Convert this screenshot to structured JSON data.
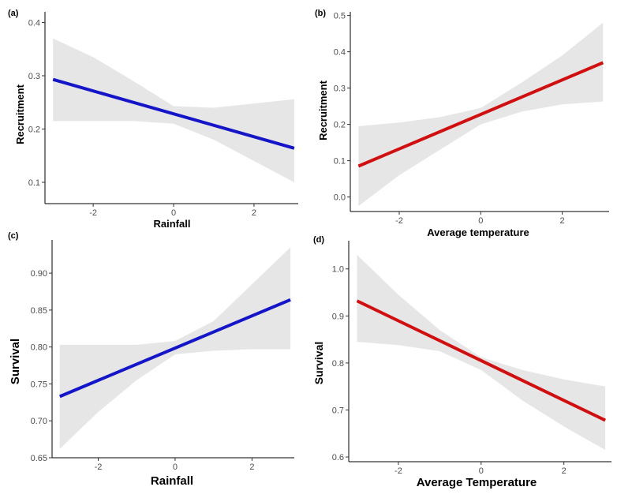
{
  "chart_data": [
    {
      "panel": "(a)",
      "type": "line",
      "xlabel": "Rainfall",
      "ylabel": "Recruitment",
      "xlim": [
        -3.2,
        3.1
      ],
      "ylim": [
        0.06,
        0.42
      ],
      "xticks": [
        -2,
        0,
        2
      ],
      "yticks": [
        0.1,
        0.2,
        0.3,
        0.4
      ],
      "ytick_labels": [
        "0.1",
        "0.2",
        "0.3",
        "0.4"
      ],
      "line_color": "#1414c8",
      "band_color": "#e6e6e6",
      "x": [
        -3,
        3
      ],
      "y": [
        0.293,
        0.164
      ],
      "ci_x": [
        -3,
        -2,
        -1,
        0,
        1,
        2,
        3
      ],
      "ci_lower": [
        0.215,
        0.215,
        0.215,
        0.21,
        0.18,
        0.14,
        0.1
      ],
      "ci_upper": [
        0.37,
        0.335,
        0.29,
        0.243,
        0.24,
        0.248,
        0.256
      ]
    },
    {
      "panel": "(b)",
      "type": "line",
      "xlabel": "Average temperature",
      "ylabel": "Recruitment",
      "xlim": [
        -3.2,
        3.15
      ],
      "ylim": [
        -0.04,
        0.51
      ],
      "xticks": [
        -2,
        0,
        2
      ],
      "yticks": [
        0.0,
        0.1,
        0.2,
        0.3,
        0.4,
        0.5
      ],
      "ytick_labels": [
        "0.0",
        "0.1",
        "0.2",
        "0.3",
        "0.4",
        "0.5"
      ],
      "line_color": "#d01010",
      "band_color": "#e6e6e6",
      "x": [
        -3,
        3
      ],
      "y": [
        0.085,
        0.37
      ],
      "ci_x": [
        -3,
        -2,
        -1,
        0,
        1,
        2,
        3
      ],
      "ci_lower": [
        -0.025,
        0.06,
        0.13,
        0.2,
        0.235,
        0.255,
        0.263
      ],
      "ci_upper": [
        0.195,
        0.205,
        0.22,
        0.245,
        0.315,
        0.39,
        0.48
      ]
    },
    {
      "panel": "(c)",
      "type": "line",
      "xlabel": "Rainfall",
      "ylabel": "Survival",
      "xlim": [
        -3.2,
        3.1
      ],
      "ylim": [
        0.65,
        0.945
      ],
      "xticks": [
        -2,
        0,
        2
      ],
      "yticks": [
        0.65,
        0.7,
        0.75,
        0.8,
        0.85,
        0.9
      ],
      "ytick_labels": [
        "0.65",
        "0.70",
        "0.75",
        "0.80",
        "0.85",
        "0.90"
      ],
      "line_color": "#1414c8",
      "band_color": "#e6e6e6",
      "x": [
        -3,
        3
      ],
      "y": [
        0.733,
        0.864
      ],
      "ci_x": [
        -3,
        -2,
        -1,
        0,
        1,
        2,
        3
      ],
      "ci_lower": [
        0.662,
        0.712,
        0.755,
        0.79,
        0.795,
        0.797,
        0.797
      ],
      "ci_upper": [
        0.803,
        0.803,
        0.803,
        0.808,
        0.835,
        0.885,
        0.935
      ]
    },
    {
      "panel": "(d)",
      "type": "line",
      "xlabel": "Average Temperature",
      "ylabel": "Survival",
      "xlim": [
        -3.2,
        3.15
      ],
      "ylim": [
        0.59,
        1.06
      ],
      "xticks": [
        -2,
        0,
        2
      ],
      "yticks": [
        0.6,
        0.7,
        0.8,
        0.9,
        1.0
      ],
      "ytick_labels": [
        "0.6",
        "0.7",
        "0.8",
        "0.9",
        "1.0"
      ],
      "line_color": "#d01010",
      "band_color": "#e6e6e6",
      "x": [
        -3,
        3
      ],
      "y": [
        0.932,
        0.678
      ],
      "ci_x": [
        -3,
        -2,
        -1,
        0,
        1,
        2,
        3
      ],
      "ci_lower": [
        0.845,
        0.838,
        0.825,
        0.785,
        0.72,
        0.665,
        0.615
      ],
      "ci_upper": [
        1.03,
        0.945,
        0.87,
        0.812,
        0.785,
        0.765,
        0.75
      ]
    }
  ]
}
